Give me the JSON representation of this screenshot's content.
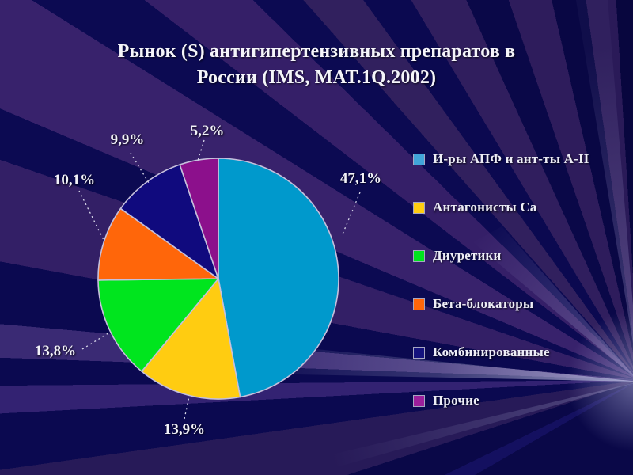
{
  "slide": {
    "title_line1": "Рынок (S) антигипертензивных препаратов в",
    "title_line2": "России  (IMS, MAT.1Q.2002)",
    "background_base_color": "#0B0950",
    "ray_color": "#38226C",
    "text_color": "#F4F4FA"
  },
  "chart_data": {
    "type": "pie",
    "title": "Рынок (S) антигипертензивных препаратов в России (IMS, MAT.1Q.2002)",
    "value_unit": "percent",
    "start_angle_deg": 0,
    "direction": "clockwise",
    "legend_position": "right",
    "slice_border_color": "#C6C0DC",
    "slices": [
      {
        "label": "И-ры АПФ и ант-ты А-II",
        "value": 47.1,
        "display_value": "47,1%",
        "color": "#0099CC",
        "swatch_color": "#41A5D9"
      },
      {
        "label": "Антагонисты Са",
        "value": 13.9,
        "display_value": "13,9%",
        "color": "#FFCC11",
        "swatch_color": "#FFCC11"
      },
      {
        "label": "Диуретики",
        "value": 13.8,
        "display_value": "13,8%",
        "color": "#00E51E",
        "swatch_color": "#00E51E"
      },
      {
        "label": "Бета-блокаторы",
        "value": 10.1,
        "display_value": "10,1%",
        "color": "#FF660A",
        "swatch_color": "#FF660A"
      },
      {
        "label": "Комбинированные",
        "value": 9.9,
        "display_value": "9,9%",
        "color": "#100A7E",
        "swatch_color": "#14127E"
      },
      {
        "label": "Прочие",
        "value": 5.2,
        "display_value": "5,2%",
        "color": "#8C108C",
        "swatch_color": "#9C1F9C"
      }
    ]
  }
}
